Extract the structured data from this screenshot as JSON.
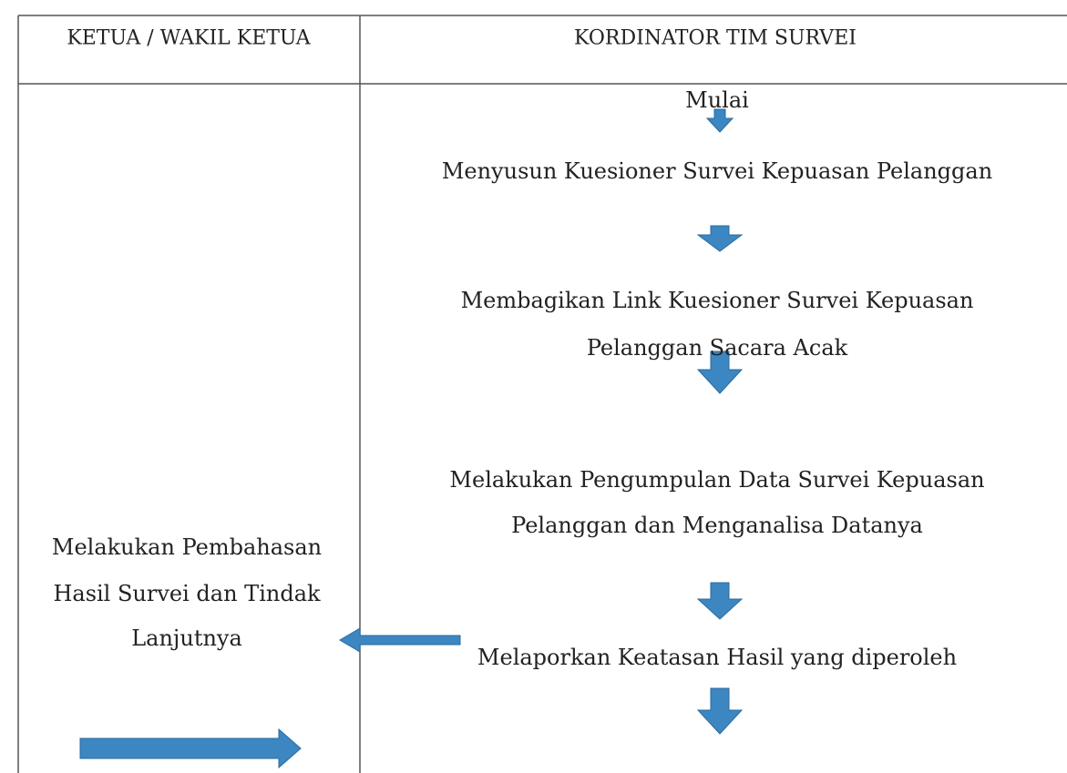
{
  "header": {
    "left": "KETUA / WAKIL KETUA",
    "right": "KORDINATOR TIM SURVEI"
  },
  "left_step": {
    "lines": [
      "Melakukan Pembahasan",
      "Hasil Survei dan Tindak",
      "Lanjutnya"
    ]
  },
  "steps": [
    {
      "lines": [
        "Mulai"
      ]
    },
    {
      "lines": [
        "Menyusun Kuesioner Survei Kepuasan Pelanggan"
      ]
    },
    {
      "lines": [
        "Membagikan Link Kuesioner Survei Kepuasan",
        "Pelanggan Sacara Acak"
      ]
    },
    {
      "lines": [
        "Melakukan Pengumpulan Data Survei Kepuasan",
        "Pelanggan dan Menganalisa Datanya"
      ]
    },
    {
      "lines": [
        "Melaporkan Keatasan Hasil yang diperoleh"
      ]
    }
  ]
}
